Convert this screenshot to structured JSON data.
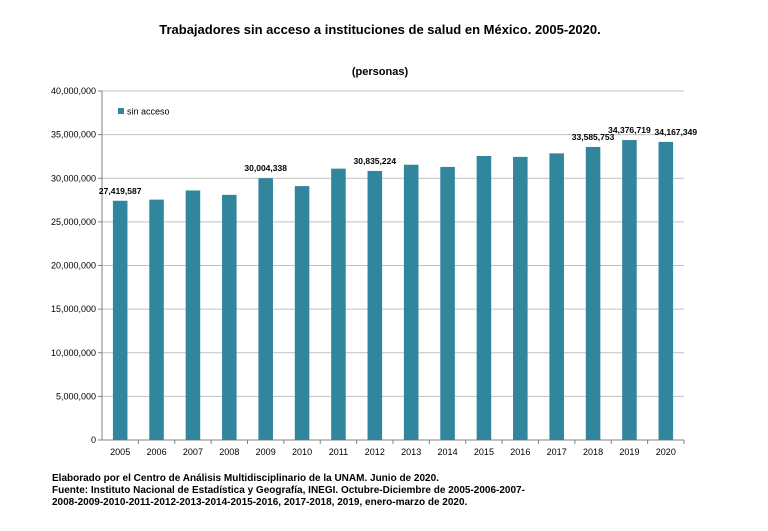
{
  "chart_data": {
    "type": "bar",
    "title": "Trabajadores sin acceso a instituciones de salud en México. 2005-2020.",
    "subtitle": "(personas)",
    "xlabel": "",
    "ylabel": "",
    "categories": [
      "2005",
      "2006",
      "2007",
      "2008",
      "2009",
      "2010",
      "2011",
      "2012",
      "2013",
      "2014",
      "2015",
      "2016",
      "2017",
      "2018",
      "2019",
      "2020"
    ],
    "series": [
      {
        "name": "sin acceso",
        "color": "#31859c",
        "values": [
          27419587,
          27550000,
          28600000,
          28100000,
          30004338,
          29100000,
          31100000,
          30835224,
          31550000,
          31300000,
          32550000,
          32450000,
          32850000,
          33585753,
          34376719,
          34167349
        ]
      }
    ],
    "data_labels": [
      {
        "index": 0,
        "text": "27,419,587"
      },
      {
        "index": 4,
        "text": "30,004,338"
      },
      {
        "index": 7,
        "text": "30,835,224"
      },
      {
        "index": 13,
        "text": "33,585,753"
      },
      {
        "index": 14,
        "text": "34,376,719"
      },
      {
        "index": 15,
        "text": "34,167,349"
      }
    ],
    "ylim": [
      0,
      40000000
    ],
    "yticks": [
      0,
      5000000,
      10000000,
      15000000,
      20000000,
      25000000,
      30000000,
      35000000,
      40000000
    ],
    "ytick_labels": [
      "0",
      "5,000,000",
      "10,000,000",
      "15,000,000",
      "20,000,000",
      "25,000,000",
      "30,000,000",
      "35,000,000",
      "40,000,000"
    ],
    "grid": true,
    "legend_position": "top-left",
    "gridline_color": "#c0c0c0",
    "axis_color": "#808080"
  },
  "footer": {
    "lines": [
      "Elaborado por el Centro de Análisis Multidisciplinario de la UNAM.  Junio de 2020.",
      "Fuente: Instituto Nacional de Estadística y Geografía, INEGI. Octubre-Diciembre de 2005-2006-2007-",
      "2008-2009-2010-2011-2012-2013-2014-2015-2016,  2017-2018, 2019, enero-marzo de 2020."
    ]
  }
}
